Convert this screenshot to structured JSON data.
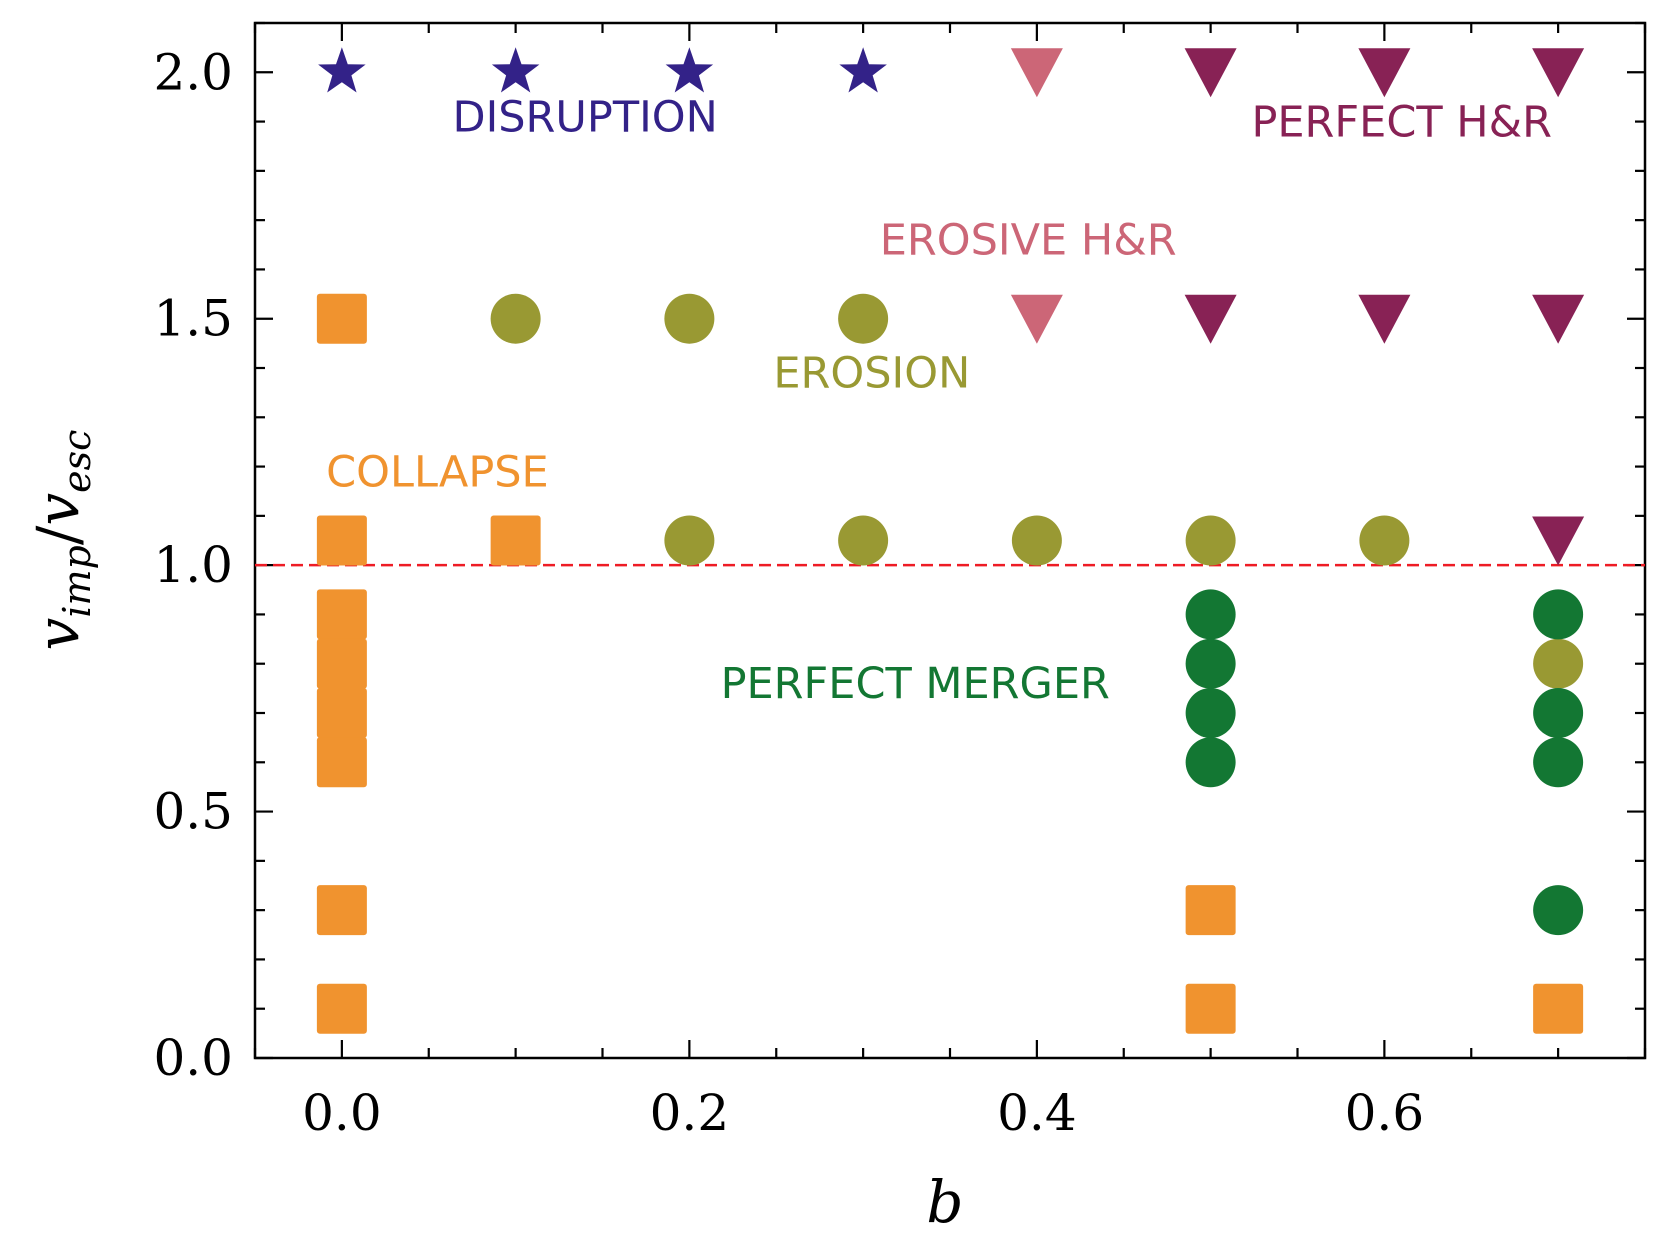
{
  "chart_data": {
    "type": "scatter",
    "xlabel": "b",
    "ylabel": "v_imp/v_esc",
    "xlim": [
      -0.05,
      0.75
    ],
    "ylim": [
      0.0,
      2.1
    ],
    "x_ticks": [
      0.0,
      0.2,
      0.4,
      0.6
    ],
    "x_tick_labels": [
      "0.0",
      "0.2",
      "0.4",
      "0.6"
    ],
    "y_ticks": [
      0.0,
      0.5,
      1.0,
      1.5,
      2.0
    ],
    "y_tick_labels": [
      "0.0",
      "0.5",
      "1.0",
      "1.5",
      "2.0"
    ],
    "x_minor_step": 0.05,
    "y_minor_step": 0.1,
    "reference_line": {
      "y": 1.0,
      "color": "#ee1c25",
      "style": "dashed"
    },
    "series": [
      {
        "marker": "star",
        "color": "#332288",
        "points": [
          [
            0.0,
            2.0
          ],
          [
            0.1,
            2.0
          ],
          [
            0.2,
            2.0
          ],
          [
            0.3,
            2.0
          ]
        ]
      },
      {
        "marker": "triangle-down",
        "color": "#CC6677",
        "points": [
          [
            0.4,
            2.0
          ],
          [
            0.4,
            1.5
          ]
        ]
      },
      {
        "marker": "triangle-down",
        "color": "#882255",
        "points": [
          [
            0.5,
            2.0
          ],
          [
            0.6,
            2.0
          ],
          [
            0.7,
            2.0
          ],
          [
            0.5,
            1.5
          ],
          [
            0.6,
            1.5
          ],
          [
            0.7,
            1.5
          ],
          [
            0.7,
            1.05
          ]
        ]
      },
      {
        "marker": "circle",
        "color": "#999933",
        "points": [
          [
            0.1,
            1.5
          ],
          [
            0.2,
            1.5
          ],
          [
            0.3,
            1.5
          ],
          [
            0.2,
            1.05
          ],
          [
            0.3,
            1.05
          ],
          [
            0.4,
            1.05
          ],
          [
            0.5,
            1.05
          ],
          [
            0.6,
            1.05
          ],
          [
            0.7,
            0.8
          ]
        ]
      },
      {
        "marker": "square",
        "color": "#F0932F",
        "points": [
          [
            0.0,
            1.5
          ],
          [
            0.0,
            1.05
          ],
          [
            0.1,
            1.05
          ],
          [
            0.0,
            0.9
          ],
          [
            0.0,
            0.8
          ],
          [
            0.0,
            0.7
          ],
          [
            0.0,
            0.6
          ],
          [
            0.0,
            0.3
          ],
          [
            0.0,
            0.1
          ],
          [
            0.5,
            0.3
          ],
          [
            0.5,
            0.1
          ],
          [
            0.7,
            0.1
          ]
        ]
      },
      {
        "marker": "circle",
        "color": "#137733",
        "points": [
          [
            0.5,
            0.9
          ],
          [
            0.5,
            0.8
          ],
          [
            0.5,
            0.7
          ],
          [
            0.5,
            0.6
          ],
          [
            0.7,
            0.9
          ],
          [
            0.7,
            0.7
          ],
          [
            0.7,
            0.6
          ],
          [
            0.7,
            0.3
          ]
        ]
      }
    ],
    "annotations": [
      {
        "text": "DISRUPTION",
        "x": 0.14,
        "y": 1.88,
        "color": "#332288"
      },
      {
        "text": "PERFECT H&R",
        "x": 0.61,
        "y": 1.87,
        "color": "#882255"
      },
      {
        "text": "EROSIVE H&R",
        "x": 0.395,
        "y": 1.63,
        "color": "#CC6677"
      },
      {
        "text": "EROSION",
        "x": 0.305,
        "y": 1.36,
        "color": "#999933"
      },
      {
        "text": "COLLAPSE",
        "x": 0.055,
        "y": 1.16,
        "color": "#F0932F"
      },
      {
        "text": "PERFECT MERGER",
        "x": 0.33,
        "y": 0.73,
        "color": "#137733"
      }
    ]
  }
}
